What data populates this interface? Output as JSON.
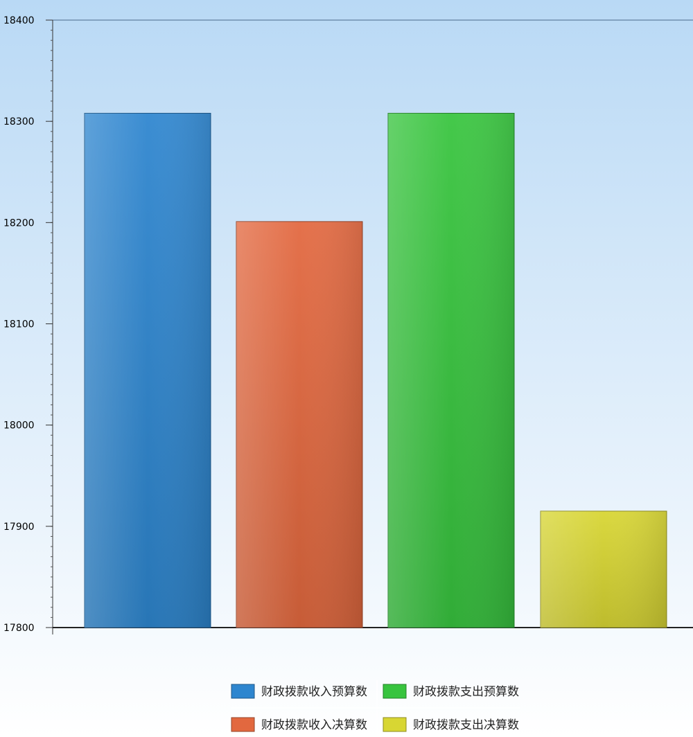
{
  "chart_data": {
    "type": "bar",
    "title": "",
    "xlabel": "",
    "ylabel": "",
    "categories": [
      "财政拨款收入预算数",
      "财政拨款收入决算数",
      "财政拨款支出预算数",
      "财政拨款支出决算数"
    ],
    "values": [
      18308,
      18201,
      18308,
      17915
    ],
    "ylim": [
      17800,
      18400
    ],
    "yticks": [
      18400,
      18300,
      18200,
      18100,
      18000,
      17900,
      17800
    ],
    "grid": false,
    "legend_position": "bottom",
    "series": [
      {
        "name": "财政拨款收入预算数",
        "value": 18308,
        "color": "#2e86cf"
      },
      {
        "name": "财政拨款收入决算数",
        "value": 18201,
        "color": "#e2683f"
      },
      {
        "name": "财政拨款支出预算数",
        "value": 18308,
        "color": "#38c43e"
      },
      {
        "name": "财政拨款支出决算数",
        "value": 17915,
        "color": "#d8d633"
      }
    ],
    "legend_order": [
      0,
      2,
      1,
      3
    ]
  },
  "colors": {
    "background_top": "#b9d9f5",
    "background_bottom": "#ffffff"
  }
}
